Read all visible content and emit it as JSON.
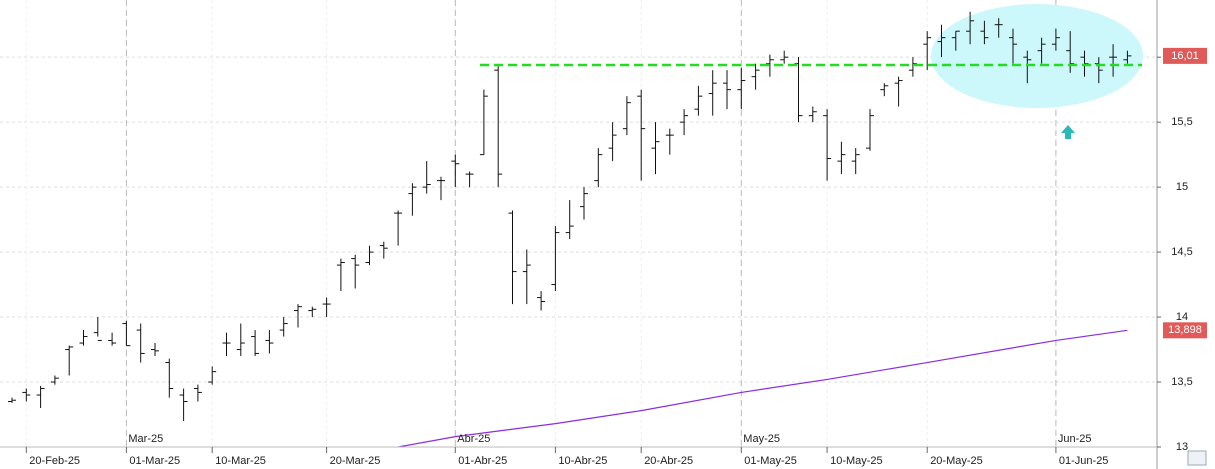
{
  "chart_data": {
    "type": "ohlc",
    "bar_color": "#111111",
    "ylim": [
      13,
      16.44
    ],
    "yticks": [
      13,
      {
        "value": 13.5,
        "label": "13,5"
      },
      14,
      {
        "value": 14.5,
        "label": "14,5"
      },
      15,
      {
        "value": 15.5,
        "label": "15,5"
      },
      16
    ],
    "grid": true,
    "categories": [
      null,
      "20-Feb-25",
      null,
      null,
      null,
      null,
      null,
      null,
      "01-Mar-25",
      null,
      null,
      null,
      null,
      null,
      "10-Mar-25",
      null,
      null,
      null,
      null,
      null,
      null,
      null,
      "20-Mar-25",
      null,
      null,
      null,
      null,
      null,
      null,
      null,
      null,
      "01-Abr-25",
      null,
      null,
      null,
      null,
      null,
      null,
      "10-Abr-25",
      null,
      null,
      null,
      null,
      null,
      "20-Abr-25",
      null,
      null,
      null,
      null,
      null,
      null,
      "01-May-25",
      null,
      null,
      null,
      null,
      null,
      "10-May-25",
      null,
      null,
      null,
      null,
      null,
      null,
      "20-May-25",
      null,
      null,
      null,
      null,
      null,
      null,
      null,
      null,
      "01-Jun-25",
      null,
      null,
      null,
      null,
      null
    ],
    "month_labels": [
      {
        "value": 8,
        "label": "Mar-25"
      },
      {
        "value": 31,
        "label": "Abr-25"
      },
      {
        "value": 51,
        "label": "May-25"
      },
      {
        "value": 73,
        "label": "Jun-25"
      }
    ],
    "ohlc": [
      [
        13.35,
        13.38,
        13.34,
        13.36
      ],
      [
        13.42,
        13.45,
        13.35,
        13.4
      ],
      [
        13.4,
        13.47,
        13.3,
        13.45
      ],
      [
        13.5,
        13.55,
        13.48,
        13.53
      ],
      [
        13.75,
        13.78,
        13.55,
        13.77
      ],
      [
        13.8,
        13.9,
        13.78,
        13.85
      ],
      [
        13.88,
        14.0,
        13.85,
        13.82
      ],
      [
        13.82,
        13.88,
        13.78,
        13.8
      ],
      [
        13.95,
        13.97,
        13.78,
        13.78
      ],
      [
        13.9,
        13.95,
        13.65,
        13.72
      ],
      [
        13.75,
        13.8,
        13.7,
        13.74
      ],
      [
        13.65,
        13.68,
        13.38,
        13.45
      ],
      [
        13.4,
        13.45,
        13.2,
        13.35
      ],
      [
        13.45,
        13.48,
        13.35,
        13.42
      ],
      [
        13.5,
        13.62,
        13.48,
        13.58
      ],
      [
        13.8,
        13.88,
        13.7,
        13.8
      ],
      [
        13.75,
        13.95,
        13.7,
        13.8
      ],
      [
        13.85,
        13.9,
        13.7,
        13.72
      ],
      [
        13.82,
        13.9,
        13.72,
        13.8
      ],
      [
        13.9,
        14.0,
        13.85,
        13.95
      ],
      [
        14.05,
        14.1,
        13.92,
        14.08
      ],
      [
        14.05,
        14.08,
        14.0,
        14.06
      ],
      [
        14.1,
        14.15,
        14.0,
        14.1
      ],
      [
        14.4,
        14.45,
        14.2,
        14.42
      ],
      [
        14.45,
        14.48,
        14.22,
        14.4
      ],
      [
        14.42,
        14.55,
        14.4,
        14.5
      ],
      [
        14.55,
        14.58,
        14.45,
        14.53
      ],
      [
        14.8,
        14.82,
        14.55,
        14.8
      ],
      [
        14.95,
        15.03,
        14.78,
        15.0
      ],
      [
        15.0,
        15.2,
        14.95,
        15.02
      ],
      [
        15.05,
        15.08,
        14.9,
        15.05
      ],
      [
        15.2,
        15.25,
        15.0,
        15.18
      ],
      [
        15.1,
        15.12,
        15.0,
        15.1
      ],
      [
        15.25,
        15.75,
        15.25,
        15.7
      ],
      [
        15.9,
        15.93,
        15.0,
        15.1
      ],
      [
        14.8,
        14.82,
        14.1,
        14.35
      ],
      [
        14.35,
        14.52,
        14.1,
        14.4
      ],
      [
        14.15,
        14.2,
        14.05,
        14.12
      ],
      [
        14.25,
        14.7,
        14.2,
        14.65
      ],
      [
        14.65,
        14.9,
        14.6,
        14.7
      ],
      [
        14.85,
        15.0,
        14.75,
        14.95
      ],
      [
        15.05,
        15.3,
        15.0,
        15.25
      ],
      [
        15.3,
        15.5,
        15.2,
        15.4
      ],
      [
        15.45,
        15.7,
        15.4,
        15.65
      ],
      [
        15.7,
        15.75,
        15.05,
        15.45
      ],
      [
        15.3,
        15.5,
        15.1,
        15.35
      ],
      [
        15.4,
        15.45,
        15.25,
        15.4
      ],
      [
        15.5,
        15.6,
        15.4,
        15.55
      ],
      [
        15.6,
        15.78,
        15.55,
        15.7
      ],
      [
        15.72,
        15.9,
        15.55,
        15.8
      ],
      [
        15.8,
        15.9,
        15.6,
        15.75
      ],
      [
        15.75,
        15.92,
        15.6,
        15.82
      ],
      [
        15.85,
        15.95,
        15.75,
        15.9
      ],
      [
        15.95,
        16.02,
        15.85,
        15.98
      ],
      [
        15.98,
        16.05,
        15.95,
        16.0
      ],
      [
        15.95,
        16.0,
        15.5,
        15.55
      ],
      [
        15.55,
        15.62,
        15.5,
        15.58
      ],
      [
        15.55,
        15.6,
        15.05,
        15.22
      ],
      [
        15.2,
        15.35,
        15.1,
        15.25
      ],
      [
        15.2,
        15.3,
        15.1,
        15.25
      ],
      [
        15.3,
        15.6,
        15.28,
        15.55
      ],
      [
        15.75,
        15.8,
        15.7,
        15.78
      ],
      [
        15.8,
        15.85,
        15.62,
        15.82
      ],
      [
        15.9,
        16.0,
        15.85,
        15.95
      ],
      [
        16.1,
        16.2,
        15.9,
        16.15
      ],
      [
        16.12,
        16.25,
        16.0,
        16.15
      ],
      [
        16.15,
        16.2,
        16.05,
        16.2
      ],
      [
        16.2,
        16.35,
        16.1,
        16.28
      ],
      [
        16.2,
        16.28,
        16.1,
        16.15
      ],
      [
        16.25,
        16.3,
        16.15,
        16.25
      ],
      [
        16.15,
        16.22,
        15.95,
        16.1
      ],
      [
        16.0,
        16.05,
        15.8,
        15.98
      ],
      [
        16.05,
        16.15,
        15.95,
        16.1
      ],
      [
        16.1,
        16.22,
        16.05,
        16.15
      ],
      [
        16.05,
        16.2,
        15.88,
        15.95
      ],
      [
        16.0,
        16.05,
        15.85,
        15.95
      ],
      [
        15.95,
        16.0,
        15.8,
        15.9
      ],
      [
        16.0,
        16.1,
        15.85,
        16.0
      ],
      [
        15.98,
        16.05,
        15.95,
        16.01
      ]
    ],
    "moving_average": {
      "color": "#8a2be2",
      "x": [
        26,
        31,
        38,
        44,
        51,
        57,
        64,
        73,
        78
      ],
      "values": [
        12.98,
        13.08,
        13.18,
        13.28,
        13.42,
        13.52,
        13.65,
        13.82,
        13.898
      ]
    },
    "hline": {
      "value": 15.94,
      "color": "#22dd22"
    },
    "price_tags": [
      {
        "value": 16.01,
        "label": "16,01",
        "color": "#e05a5a"
      },
      {
        "value": 13.898,
        "label": "13,898",
        "color": "#e05a5a"
      }
    ]
  }
}
